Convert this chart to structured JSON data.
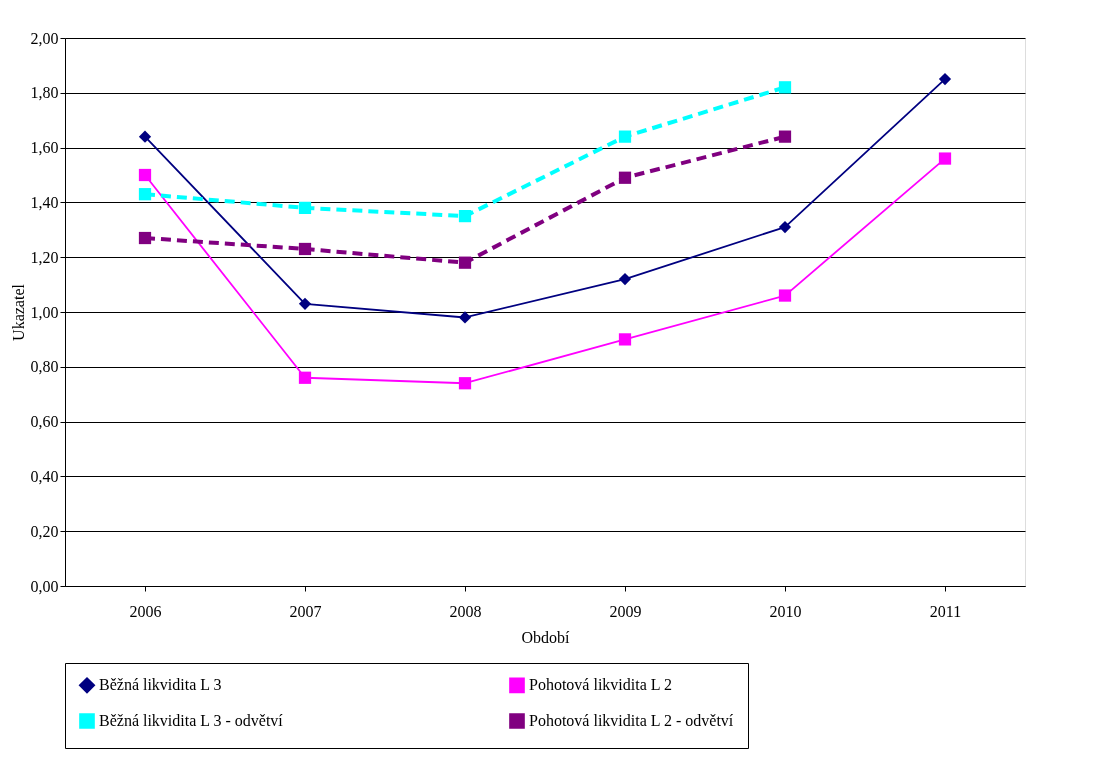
{
  "chart_data": {
    "type": "line",
    "xlabel": "Období",
    "ylabel": "Ukazatel",
    "categories": [
      "2006",
      "2007",
      "2008",
      "2009",
      "2010",
      "2011"
    ],
    "series": [
      {
        "name": "Běžná likvidita L 3",
        "color": "#000080",
        "marker": "diamond",
        "line_style": "solid",
        "values": [
          1.64,
          1.03,
          0.98,
          1.12,
          1.31,
          1.85
        ]
      },
      {
        "name": "Pohotová likvidita L 2",
        "color": "#ff00ff",
        "marker": "square",
        "line_style": "solid",
        "values": [
          1.5,
          0.76,
          0.74,
          0.9,
          1.06,
          1.56
        ]
      },
      {
        "name": "Běžná likvidita L 3 - odvětví",
        "color": "#00ffff",
        "marker": "square",
        "line_style": "dashed",
        "values": [
          1.43,
          1.38,
          1.35,
          1.64,
          1.82,
          null
        ]
      },
      {
        "name": "Pohotová likvidita L 2 - odvětví",
        "color": "#800080",
        "marker": "square",
        "line_style": "dashed",
        "values": [
          1.27,
          1.23,
          1.18,
          1.49,
          1.64,
          null
        ]
      }
    ],
    "ylim": [
      0,
      2
    ],
    "yticks": [
      {
        "value": 0,
        "label": "0,00"
      },
      {
        "value": 0.2,
        "label": "0,20"
      },
      {
        "value": 0.4,
        "label": "0,40"
      },
      {
        "value": 0.6,
        "label": "0,60"
      },
      {
        "value": 0.8,
        "label": "0,80"
      },
      {
        "value": 1.0,
        "label": "1,00"
      },
      {
        "value": 1.2,
        "label": "1,20"
      },
      {
        "value": 1.4,
        "label": "1,40"
      },
      {
        "value": 1.6,
        "label": "1,60"
      },
      {
        "value": 1.8,
        "label": "1,80"
      },
      {
        "value": 2.0,
        "label": "2,00"
      }
    ],
    "grid": "y",
    "legend": "bottom"
  }
}
